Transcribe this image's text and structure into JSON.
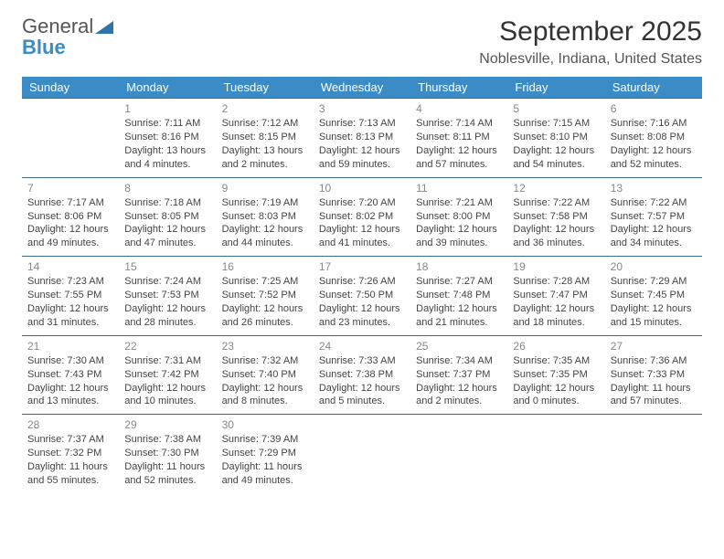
{
  "brand": {
    "part1": "General",
    "part2": "Blue"
  },
  "title": "September 2025",
  "location": "Noblesville, Indiana, United States",
  "theme": {
    "header_bg": "#3b8bc6",
    "header_fg": "#ffffff",
    "border_color": "#3b6a8e",
    "page_bg": "#ffffff",
    "text_color": "#444444",
    "daynum_color": "#888888",
    "title_fontsize": 30,
    "location_fontsize": 16,
    "header_fontsize": 13,
    "cell_fontsize": 11
  },
  "weekdays": [
    "Sunday",
    "Monday",
    "Tuesday",
    "Wednesday",
    "Thursday",
    "Friday",
    "Saturday"
  ],
  "weeks": [
    [
      null,
      {
        "n": "1",
        "sr": "Sunrise: 7:11 AM",
        "ss": "Sunset: 8:16 PM",
        "dl": "Daylight: 13 hours and 4 minutes."
      },
      {
        "n": "2",
        "sr": "Sunrise: 7:12 AM",
        "ss": "Sunset: 8:15 PM",
        "dl": "Daylight: 13 hours and 2 minutes."
      },
      {
        "n": "3",
        "sr": "Sunrise: 7:13 AM",
        "ss": "Sunset: 8:13 PM",
        "dl": "Daylight: 12 hours and 59 minutes."
      },
      {
        "n": "4",
        "sr": "Sunrise: 7:14 AM",
        "ss": "Sunset: 8:11 PM",
        "dl": "Daylight: 12 hours and 57 minutes."
      },
      {
        "n": "5",
        "sr": "Sunrise: 7:15 AM",
        "ss": "Sunset: 8:10 PM",
        "dl": "Daylight: 12 hours and 54 minutes."
      },
      {
        "n": "6",
        "sr": "Sunrise: 7:16 AM",
        "ss": "Sunset: 8:08 PM",
        "dl": "Daylight: 12 hours and 52 minutes."
      }
    ],
    [
      {
        "n": "7",
        "sr": "Sunrise: 7:17 AM",
        "ss": "Sunset: 8:06 PM",
        "dl": "Daylight: 12 hours and 49 minutes."
      },
      {
        "n": "8",
        "sr": "Sunrise: 7:18 AM",
        "ss": "Sunset: 8:05 PM",
        "dl": "Daylight: 12 hours and 47 minutes."
      },
      {
        "n": "9",
        "sr": "Sunrise: 7:19 AM",
        "ss": "Sunset: 8:03 PM",
        "dl": "Daylight: 12 hours and 44 minutes."
      },
      {
        "n": "10",
        "sr": "Sunrise: 7:20 AM",
        "ss": "Sunset: 8:02 PM",
        "dl": "Daylight: 12 hours and 41 minutes."
      },
      {
        "n": "11",
        "sr": "Sunrise: 7:21 AM",
        "ss": "Sunset: 8:00 PM",
        "dl": "Daylight: 12 hours and 39 minutes."
      },
      {
        "n": "12",
        "sr": "Sunrise: 7:22 AM",
        "ss": "Sunset: 7:58 PM",
        "dl": "Daylight: 12 hours and 36 minutes."
      },
      {
        "n": "13",
        "sr": "Sunrise: 7:22 AM",
        "ss": "Sunset: 7:57 PM",
        "dl": "Daylight: 12 hours and 34 minutes."
      }
    ],
    [
      {
        "n": "14",
        "sr": "Sunrise: 7:23 AM",
        "ss": "Sunset: 7:55 PM",
        "dl": "Daylight: 12 hours and 31 minutes."
      },
      {
        "n": "15",
        "sr": "Sunrise: 7:24 AM",
        "ss": "Sunset: 7:53 PM",
        "dl": "Daylight: 12 hours and 28 minutes."
      },
      {
        "n": "16",
        "sr": "Sunrise: 7:25 AM",
        "ss": "Sunset: 7:52 PM",
        "dl": "Daylight: 12 hours and 26 minutes."
      },
      {
        "n": "17",
        "sr": "Sunrise: 7:26 AM",
        "ss": "Sunset: 7:50 PM",
        "dl": "Daylight: 12 hours and 23 minutes."
      },
      {
        "n": "18",
        "sr": "Sunrise: 7:27 AM",
        "ss": "Sunset: 7:48 PM",
        "dl": "Daylight: 12 hours and 21 minutes."
      },
      {
        "n": "19",
        "sr": "Sunrise: 7:28 AM",
        "ss": "Sunset: 7:47 PM",
        "dl": "Daylight: 12 hours and 18 minutes."
      },
      {
        "n": "20",
        "sr": "Sunrise: 7:29 AM",
        "ss": "Sunset: 7:45 PM",
        "dl": "Daylight: 12 hours and 15 minutes."
      }
    ],
    [
      {
        "n": "21",
        "sr": "Sunrise: 7:30 AM",
        "ss": "Sunset: 7:43 PM",
        "dl": "Daylight: 12 hours and 13 minutes."
      },
      {
        "n": "22",
        "sr": "Sunrise: 7:31 AM",
        "ss": "Sunset: 7:42 PM",
        "dl": "Daylight: 12 hours and 10 minutes."
      },
      {
        "n": "23",
        "sr": "Sunrise: 7:32 AM",
        "ss": "Sunset: 7:40 PM",
        "dl": "Daylight: 12 hours and 8 minutes."
      },
      {
        "n": "24",
        "sr": "Sunrise: 7:33 AM",
        "ss": "Sunset: 7:38 PM",
        "dl": "Daylight: 12 hours and 5 minutes."
      },
      {
        "n": "25",
        "sr": "Sunrise: 7:34 AM",
        "ss": "Sunset: 7:37 PM",
        "dl": "Daylight: 12 hours and 2 minutes."
      },
      {
        "n": "26",
        "sr": "Sunrise: 7:35 AM",
        "ss": "Sunset: 7:35 PM",
        "dl": "Daylight: 12 hours and 0 minutes."
      },
      {
        "n": "27",
        "sr": "Sunrise: 7:36 AM",
        "ss": "Sunset: 7:33 PM",
        "dl": "Daylight: 11 hours and 57 minutes."
      }
    ],
    [
      {
        "n": "28",
        "sr": "Sunrise: 7:37 AM",
        "ss": "Sunset: 7:32 PM",
        "dl": "Daylight: 11 hours and 55 minutes."
      },
      {
        "n": "29",
        "sr": "Sunrise: 7:38 AM",
        "ss": "Sunset: 7:30 PM",
        "dl": "Daylight: 11 hours and 52 minutes."
      },
      {
        "n": "30",
        "sr": "Sunrise: 7:39 AM",
        "ss": "Sunset: 7:29 PM",
        "dl": "Daylight: 11 hours and 49 minutes."
      },
      null,
      null,
      null,
      null
    ]
  ]
}
